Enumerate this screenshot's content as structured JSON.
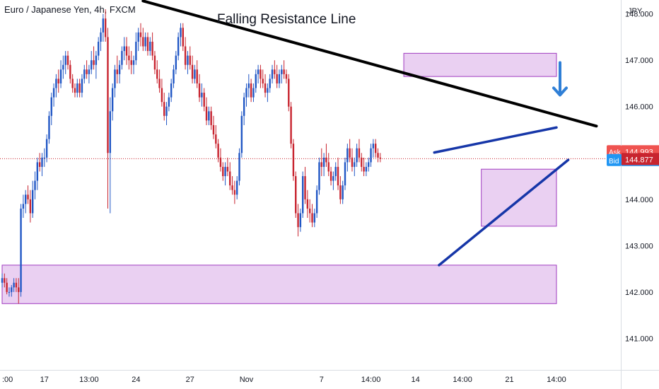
{
  "header": {
    "title": "Euro / Japanese Yen, 4h, FXCM"
  },
  "colors": {
    "up": "#2157c5",
    "down": "#c8242f",
    "zone_fill": "rgba(208,150,227,0.45)",
    "zone_stroke": "#a03cc0",
    "trend_black": "#000000",
    "trend_blue": "#1636a8",
    "arrow": "#2f7fd6",
    "ask_bg": "#ef5350",
    "bid_bg": "#2196f3",
    "last_bg": "#c8242f"
  },
  "price_badges": {
    "ask_label": "Ask",
    "ask_value": "144.993",
    "bid_label": "Bid",
    "bid_value": "144.877",
    "last_value": "144.877"
  },
  "chart_data": {
    "type": "candlestick",
    "title": "Euro / Japanese Yen, 4h, FXCM",
    "currency_label": "JPY",
    "ylim": [
      140.32,
      148.3
    ],
    "y_ticks": [
      141.0,
      142.0,
      143.0,
      144.0,
      145.0,
      146.0,
      147.0,
      148.0
    ],
    "y_tick_labels": [
      "141.000",
      "142.000",
      "143.000",
      "144.000",
      "145.000",
      "146.000",
      "147.000",
      "148.000"
    ],
    "x_ticks": [
      {
        "label": ":00",
        "bar": 0
      },
      {
        "label": "17",
        "bar": 18
      },
      {
        "label": "13:00",
        "bar": 37
      },
      {
        "label": "24",
        "bar": 57
      },
      {
        "label": "27",
        "bar": 80
      },
      {
        "label": "Nov",
        "bar": 104
      },
      {
        "label": "7",
        "bar": 136
      },
      {
        "label": "14:00",
        "bar": 157
      },
      {
        "label": "14",
        "bar": 176
      },
      {
        "label": "14:00",
        "bar": 196
      },
      {
        "label": "21",
        "bar": 216
      },
      {
        "label": "14:00",
        "bar": 236
      }
    ],
    "current_price": 144.877,
    "annotation": "Falling Resistance Line",
    "candles": [
      [
        142.2,
        142.4,
        142.1,
        142.3
      ],
      [
        142.3,
        142.4,
        142.1,
        142.2
      ],
      [
        142.2,
        142.3,
        141.95,
        142.0
      ],
      [
        142.0,
        142.1,
        141.9,
        142.0
      ],
      [
        142.0,
        142.15,
        141.9,
        142.1
      ],
      [
        142.1,
        142.3,
        142.0,
        142.2
      ],
      [
        142.2,
        142.3,
        142.0,
        142.1
      ],
      [
        142.1,
        142.3,
        141.75,
        142.0
      ],
      [
        142.0,
        143.9,
        141.9,
        143.8
      ],
      [
        143.8,
        144.1,
        143.6,
        143.9
      ],
      [
        143.9,
        144.2,
        143.7,
        144.1
      ],
      [
        144.1,
        144.3,
        143.9,
        144.0
      ],
      [
        144.0,
        144.2,
        143.5,
        143.7
      ],
      [
        143.7,
        144.4,
        143.6,
        144.2
      ],
      [
        144.2,
        144.6,
        144.0,
        144.4
      ],
      [
        144.4,
        144.9,
        144.2,
        144.8
      ],
      [
        144.8,
        145.0,
        144.6,
        144.7
      ],
      [
        144.7,
        145.0,
        144.5,
        144.9
      ],
      [
        144.9,
        145.1,
        144.7,
        144.9
      ],
      [
        144.9,
        145.4,
        144.8,
        145.3
      ],
      [
        145.3,
        145.9,
        145.2,
        145.8
      ],
      [
        145.8,
        146.3,
        145.6,
        146.2
      ],
      [
        146.2,
        146.5,
        146.0,
        146.4
      ],
      [
        146.4,
        146.7,
        146.2,
        146.6
      ],
      [
        146.6,
        146.8,
        146.3,
        146.5
      ],
      [
        146.5,
        147.0,
        146.4,
        146.8
      ],
      [
        146.8,
        147.1,
        146.6,
        146.9
      ],
      [
        146.9,
        147.2,
        146.7,
        147.1
      ],
      [
        147.1,
        147.2,
        146.8,
        146.9
      ],
      [
        146.9,
        147.0,
        146.5,
        146.6
      ],
      [
        146.6,
        146.7,
        146.3,
        146.4
      ],
      [
        146.4,
        146.5,
        146.2,
        146.3
      ],
      [
        146.3,
        146.6,
        146.2,
        146.5
      ],
      [
        146.5,
        146.6,
        146.2,
        146.3
      ],
      [
        146.3,
        146.7,
        146.2,
        146.6
      ],
      [
        146.6,
        146.9,
        146.5,
        146.8
      ],
      [
        146.8,
        147.0,
        146.6,
        146.7
      ],
      [
        146.7,
        146.9,
        146.5,
        146.8
      ],
      [
        146.8,
        147.2,
        146.7,
        147.0
      ],
      [
        147.0,
        147.3,
        146.8,
        146.9
      ],
      [
        146.9,
        147.2,
        146.6,
        147.1
      ],
      [
        147.1,
        147.5,
        147.0,
        147.4
      ],
      [
        147.4,
        147.7,
        147.2,
        147.6
      ],
      [
        147.6,
        148.0,
        147.4,
        147.9
      ],
      [
        147.9,
        148.1,
        147.4,
        147.5
      ],
      [
        147.5,
        147.7,
        143.8,
        145.0
      ],
      [
        145.0,
        146.2,
        143.7,
        145.9
      ],
      [
        145.9,
        146.5,
        145.7,
        146.4
      ],
      [
        146.4,
        146.9,
        146.2,
        146.8
      ],
      [
        146.8,
        147.1,
        146.5,
        146.7
      ],
      [
        146.7,
        147.0,
        146.5,
        146.9
      ],
      [
        146.9,
        147.3,
        146.8,
        147.2
      ],
      [
        147.2,
        147.5,
        147.0,
        147.3
      ],
      [
        147.3,
        147.5,
        146.9,
        147.1
      ],
      [
        147.1,
        147.3,
        146.8,
        147.0
      ],
      [
        147.0,
        147.2,
        146.7,
        146.9
      ],
      [
        146.9,
        147.1,
        146.7,
        147.0
      ],
      [
        147.0,
        147.6,
        146.9,
        147.4
      ],
      [
        147.4,
        147.7,
        147.2,
        147.6
      ],
      [
        147.6,
        147.8,
        147.3,
        147.5
      ],
      [
        147.5,
        147.7,
        147.2,
        147.3
      ],
      [
        147.3,
        147.6,
        147.2,
        147.5
      ],
      [
        147.5,
        147.6,
        147.1,
        147.2
      ],
      [
        147.2,
        147.5,
        147.1,
        147.4
      ],
      [
        147.4,
        147.6,
        147.0,
        147.1
      ],
      [
        147.1,
        147.2,
        146.7,
        146.8
      ],
      [
        146.8,
        147.0,
        146.5,
        146.6
      ],
      [
        146.6,
        146.8,
        146.3,
        146.4
      ],
      [
        146.4,
        146.6,
        146.0,
        146.1
      ],
      [
        146.1,
        146.3,
        145.7,
        145.8
      ],
      [
        145.8,
        146.1,
        145.6,
        146.0
      ],
      [
        146.0,
        146.3,
        145.9,
        146.2
      ],
      [
        146.2,
        146.6,
        146.1,
        146.5
      ],
      [
        146.5,
        146.9,
        146.4,
        146.8
      ],
      [
        146.8,
        147.2,
        146.7,
        147.1
      ],
      [
        147.1,
        147.6,
        147.0,
        147.5
      ],
      [
        147.5,
        147.8,
        147.3,
        147.7
      ],
      [
        147.7,
        147.8,
        147.2,
        147.3
      ],
      [
        147.3,
        147.5,
        146.8,
        146.9
      ],
      [
        146.9,
        147.2,
        146.7,
        147.1
      ],
      [
        147.1,
        147.3,
        146.8,
        146.9
      ],
      [
        146.9,
        147.1,
        146.5,
        146.6
      ],
      [
        146.6,
        146.9,
        146.5,
        146.8
      ],
      [
        146.8,
        147.0,
        146.4,
        146.5
      ],
      [
        146.5,
        146.7,
        146.1,
        146.2
      ],
      [
        146.2,
        146.5,
        146.0,
        146.3
      ],
      [
        146.3,
        146.4,
        145.9,
        146.0
      ],
      [
        146.0,
        146.2,
        145.6,
        145.7
      ],
      [
        145.7,
        146.0,
        145.6,
        145.9
      ],
      [
        145.9,
        146.0,
        145.5,
        145.6
      ],
      [
        145.6,
        145.8,
        145.3,
        145.4
      ],
      [
        145.4,
        145.6,
        145.1,
        145.2
      ],
      [
        145.2,
        145.3,
        144.8,
        144.9
      ],
      [
        144.9,
        145.1,
        144.6,
        144.7
      ],
      [
        144.7,
        144.8,
        144.4,
        144.5
      ],
      [
        144.5,
        144.8,
        144.3,
        144.7
      ],
      [
        144.7,
        144.9,
        144.5,
        144.6
      ],
      [
        144.6,
        144.8,
        144.2,
        144.3
      ],
      [
        144.3,
        144.5,
        144.1,
        144.2
      ],
      [
        144.2,
        144.4,
        143.9,
        144.1
      ],
      [
        144.1,
        144.5,
        144.0,
        144.4
      ],
      [
        144.4,
        145.1,
        144.3,
        145.0
      ],
      [
        145.0,
        145.9,
        144.9,
        145.8
      ],
      [
        145.8,
        146.3,
        145.6,
        146.2
      ],
      [
        146.2,
        146.5,
        146.0,
        146.4
      ],
      [
        146.4,
        146.7,
        146.2,
        146.5
      ],
      [
        146.5,
        146.6,
        146.1,
        146.2
      ],
      [
        146.2,
        146.5,
        146.1,
        146.4
      ],
      [
        146.4,
        146.8,
        146.3,
        146.7
      ],
      [
        146.7,
        146.9,
        146.5,
        146.8
      ],
      [
        146.8,
        146.9,
        146.4,
        146.6
      ],
      [
        146.6,
        146.8,
        146.4,
        146.5
      ],
      [
        146.5,
        146.7,
        146.2,
        146.3
      ],
      [
        146.3,
        146.5,
        146.1,
        146.4
      ],
      [
        146.4,
        146.7,
        146.3,
        146.6
      ],
      [
        146.6,
        146.9,
        146.5,
        146.8
      ],
      [
        146.8,
        147.0,
        146.6,
        146.7
      ],
      [
        146.7,
        146.9,
        146.4,
        146.5
      ],
      [
        146.5,
        146.8,
        146.4,
        146.7
      ],
      [
        146.7,
        146.9,
        146.5,
        146.8
      ],
      [
        146.8,
        147.0,
        146.6,
        146.7
      ],
      [
        146.7,
        146.8,
        146.5,
        146.6
      ],
      [
        146.6,
        146.7,
        145.9,
        146.0
      ],
      [
        146.0,
        146.1,
        145.1,
        145.2
      ],
      [
        145.2,
        145.3,
        144.4,
        144.5
      ],
      [
        144.5,
        144.6,
        143.6,
        143.7
      ],
      [
        143.7,
        143.9,
        143.2,
        143.4
      ],
      [
        143.4,
        143.8,
        143.3,
        143.7
      ],
      [
        143.7,
        144.6,
        143.6,
        144.5
      ],
      [
        144.5,
        144.7,
        143.9,
        144.0
      ],
      [
        144.0,
        144.2,
        143.6,
        143.8
      ],
      [
        143.8,
        144.0,
        143.5,
        143.7
      ],
      [
        143.7,
        143.9,
        143.4,
        143.5
      ],
      [
        143.5,
        143.8,
        143.4,
        143.7
      ],
      [
        143.7,
        144.3,
        143.6,
        144.2
      ],
      [
        144.2,
        144.9,
        144.1,
        144.8
      ],
      [
        144.8,
        145.1,
        144.5,
        144.7
      ],
      [
        144.7,
        145.0,
        144.5,
        144.9
      ],
      [
        144.9,
        145.2,
        144.7,
        144.8
      ],
      [
        144.8,
        145.0,
        144.5,
        144.6
      ],
      [
        144.6,
        144.7,
        144.3,
        144.4
      ],
      [
        144.4,
        144.6,
        144.2,
        144.5
      ],
      [
        144.5,
        144.8,
        144.4,
        144.7
      ],
      [
        144.7,
        144.9,
        144.2,
        144.3
      ],
      [
        144.3,
        144.5,
        143.9,
        144.0
      ],
      [
        144.0,
        144.4,
        143.9,
        144.3
      ],
      [
        144.3,
        144.9,
        144.2,
        144.8
      ],
      [
        144.8,
        145.2,
        144.6,
        145.1
      ],
      [
        145.1,
        145.3,
        144.8,
        144.9
      ],
      [
        144.9,
        145.1,
        144.6,
        144.7
      ],
      [
        144.7,
        144.9,
        144.5,
        144.8
      ],
      [
        144.8,
        145.2,
        144.7,
        145.1
      ],
      [
        145.1,
        145.3,
        144.8,
        144.9
      ],
      [
        144.9,
        145.0,
        144.6,
        144.7
      ],
      [
        144.7,
        144.9,
        144.5,
        144.6
      ],
      [
        144.6,
        144.8,
        144.5,
        144.7
      ],
      [
        144.7,
        144.9,
        144.6,
        144.8
      ],
      [
        144.8,
        145.2,
        144.7,
        145.1
      ],
      [
        145.1,
        145.3,
        144.9,
        145.2
      ],
      [
        145.2,
        145.3,
        144.9,
        145.0
      ],
      [
        145.0,
        145.1,
        144.8,
        144.9
      ],
      [
        144.9,
        145.0,
        144.8,
        144.877
      ]
    ],
    "zones": [
      {
        "x0_bar": 0,
        "x1_bar": 236,
        "y_low": 141.75,
        "y_high": 142.58
      },
      {
        "x0_bar": 171,
        "x1_bar": 236,
        "y_low": 146.65,
        "y_high": 147.15
      },
      {
        "x0_bar": 204,
        "x1_bar": 236,
        "y_low": 143.42,
        "y_high": 144.65
      }
    ],
    "trendlines": [
      {
        "name": "falling-resistance",
        "from": {
          "bar": 60,
          "price": 148.28
        },
        "to": {
          "bar": 253,
          "price": 145.58
        }
      },
      {
        "name": "rising-support",
        "from": {
          "bar": 186,
          "price": 142.58
        },
        "to": {
          "bar": 241,
          "price": 144.85
        }
      },
      {
        "name": "channel-top",
        "from": {
          "bar": 184,
          "price": 145.01
        },
        "to": {
          "bar": 236,
          "price": 145.55
        }
      }
    ]
  }
}
